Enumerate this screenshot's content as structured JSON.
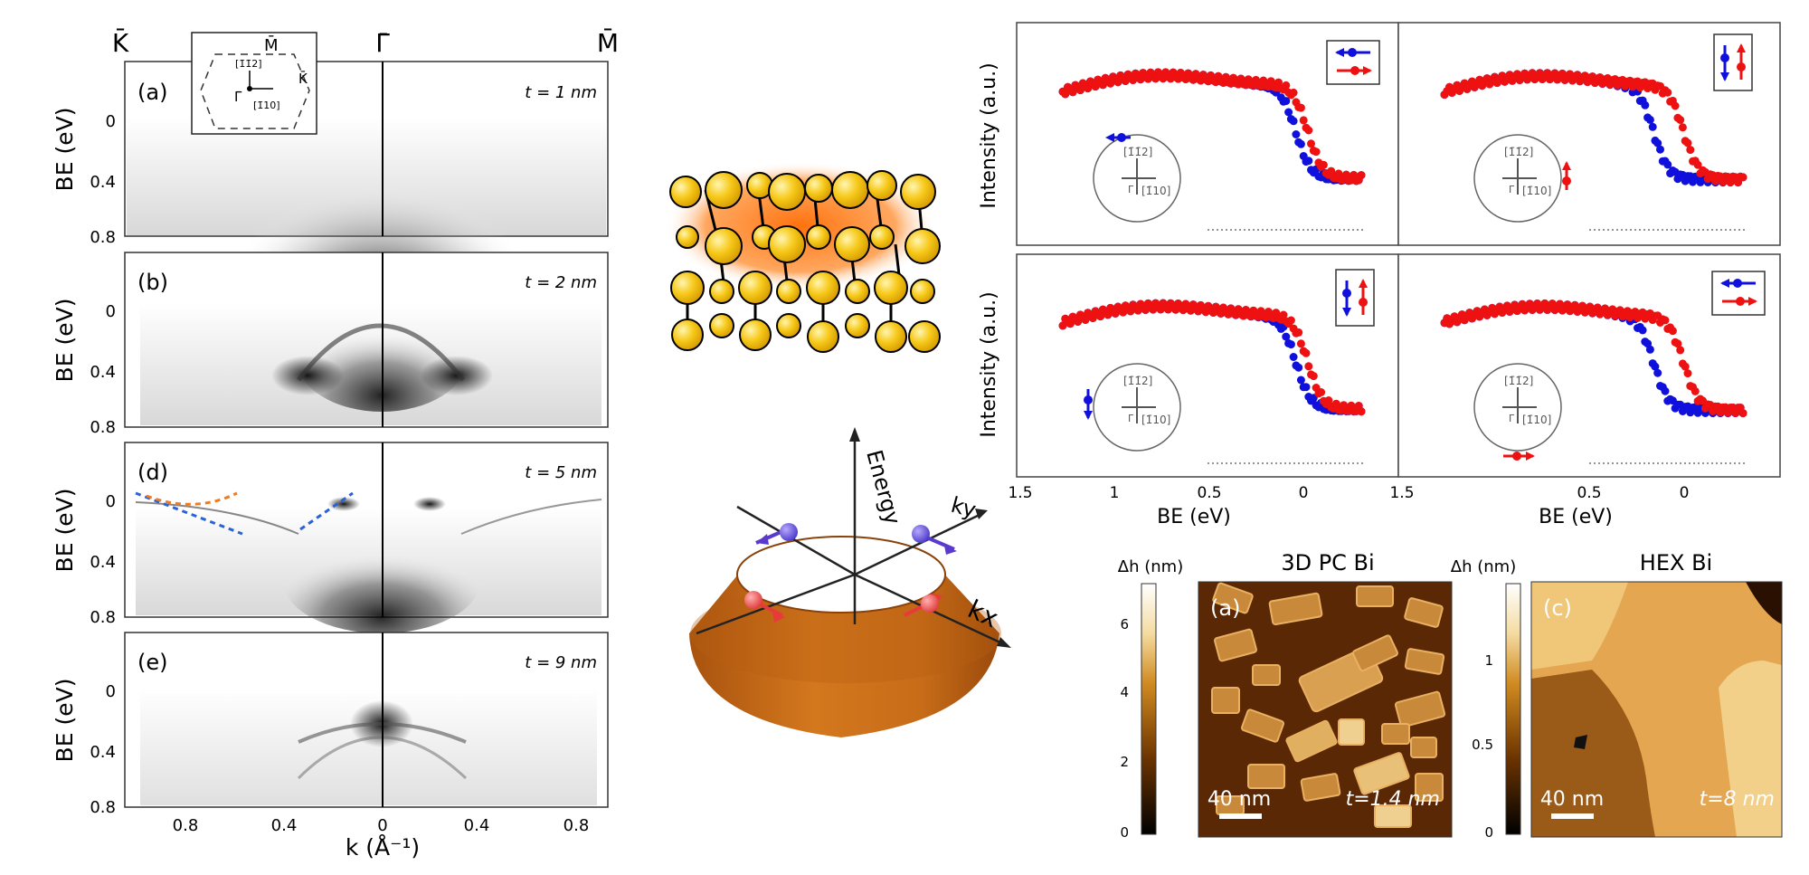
{
  "arpes": {
    "sym_points": {
      "k_left": "K̄",
      "gamma": "Γ̄",
      "m_right": "M̄"
    },
    "inset": {
      "m": "M̄",
      "k": "K̄",
      "gamma": "Γ̄",
      "dir1": "[1̄1̄2]",
      "dir2": "[1̄10]"
    },
    "ylabel": "BE (eV)",
    "xlabel": "k (Å⁻¹)",
    "y_ticks": [
      "0",
      "0.4",
      "0.8"
    ],
    "x_ticks": [
      "0.8",
      "0.4",
      "0",
      "0.4",
      "0.8"
    ],
    "panels": [
      {
        "label": "(a)",
        "thickness": "t = 1 nm"
      },
      {
        "label": "(b)",
        "thickness": "t = 2 nm"
      },
      {
        "label": "(d)",
        "thickness": "t = 5 nm"
      },
      {
        "label": "(e)",
        "thickness": "t = 9 nm"
      }
    ]
  },
  "cone": {
    "energy": "Energy",
    "ky": "ky",
    "kx": "kx"
  },
  "spin_edc": {
    "ylabel": "Intensity (a.u.)",
    "xlabel": "BE (eV)",
    "x_ticks": [
      "1.5",
      "1",
      "0.5",
      "0"
    ],
    "inset_dir1": "[1̄1̄2]",
    "inset_dir2": "[1̄10]",
    "inset_gamma": "Γ",
    "colors": {
      "spin_a": "#1010dd",
      "spin_b": "#ee1111"
    }
  },
  "afm": [
    {
      "title": "3D PC Bi",
      "cb_label": "Δh (nm)",
      "cb_ticks": [
        "6",
        "4",
        "2",
        "0"
      ],
      "panel": "(a)",
      "scale": "40 nm",
      "thickness": "t=1.4 nm"
    },
    {
      "title": "HEX Bi",
      "cb_label": "Δh (nm)",
      "cb_ticks": [
        "1",
        "0.5",
        "0"
      ],
      "panel": "(c)",
      "scale": "40 nm",
      "thickness": "t=8 nm"
    }
  ]
}
